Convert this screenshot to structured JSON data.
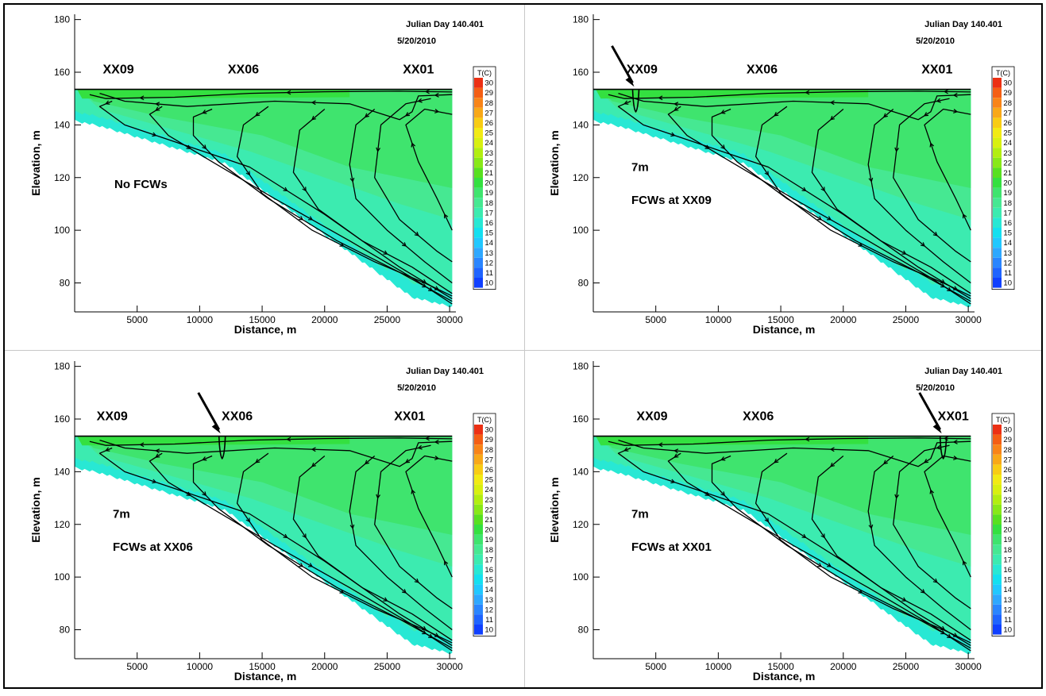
{
  "colorbar": {
    "title": "T(C)",
    "levels": [
      10,
      11,
      12,
      13,
      14,
      15,
      16,
      17,
      18,
      19,
      20,
      21,
      22,
      23,
      24,
      25,
      26,
      27,
      28,
      29,
      30
    ],
    "colors": [
      "#1040ff",
      "#1f64ff",
      "#2a85ff",
      "#2ea8ff",
      "#21c8ff",
      "#14e0f0",
      "#28e8d4",
      "#3cebb0",
      "#46e892",
      "#3fe46e",
      "#34e040",
      "#58e020",
      "#88e818",
      "#b2ee10",
      "#d8f010",
      "#f2ea14",
      "#f8cc14",
      "#f8a818",
      "#f88418",
      "#f45e14",
      "#ec3014"
    ]
  },
  "chart_data": [
    {
      "type": "contour",
      "title": "Julian Day 140.401",
      "subtitle": "5/20/2010",
      "xlabel": "Distance, m",
      "ylabel": "Elevation, m",
      "xlim": [
        0,
        30500
      ],
      "ylim": [
        69,
        182
      ],
      "xticks": [
        "5000",
        "10000",
        "15000",
        "20000",
        "25000",
        "30000"
      ],
      "yticks": [
        "80",
        "100",
        "120",
        "140",
        "160",
        "180"
      ],
      "station_labels": [
        {
          "text": "XX09",
          "x": 3500
        },
        {
          "text": "XX06",
          "x": 13500
        },
        {
          "text": "XX01",
          "x": 27500
        }
      ],
      "annotations": [
        "No FCWs"
      ],
      "fcw_x": null
    },
    {
      "type": "contour",
      "title": "Julian Day 140.401",
      "subtitle": "5/20/2010",
      "xlabel": "Distance, m",
      "ylabel": "Elevation, m",
      "xlim": [
        0,
        30500
      ],
      "ylim": [
        69,
        182
      ],
      "xticks": [
        "5000",
        "10000",
        "15000",
        "20000",
        "25000",
        "30000"
      ],
      "yticks": [
        "80",
        "100",
        "120",
        "140",
        "160",
        "180"
      ],
      "station_labels": [
        {
          "text": "XX09",
          "x": 3900
        },
        {
          "text": "XX06",
          "x": 13500
        },
        {
          "text": "XX01",
          "x": 27500
        }
      ],
      "annotations": [
        "7m",
        "FCWs at XX09"
      ],
      "fcw_x": 3400
    },
    {
      "type": "contour",
      "title": "Julian Day 140.401",
      "subtitle": "5/20/2010",
      "xlabel": "Distance, m",
      "ylabel": "Elevation, m",
      "xlim": [
        0,
        30500
      ],
      "ylim": [
        69,
        182
      ],
      "xticks": [
        "5000",
        "10000",
        "15000",
        "20000",
        "25000",
        "30000"
      ],
      "yticks": [
        "80",
        "100",
        "120",
        "140",
        "160",
        "180"
      ],
      "station_labels": [
        {
          "text": "XX09",
          "x": 3000
        },
        {
          "text": "XX06",
          "x": 13000
        },
        {
          "text": "XX01",
          "x": 26800
        }
      ],
      "annotations": [
        "7m",
        "FCWs at XX06"
      ],
      "fcw_x": 11800
    },
    {
      "type": "contour",
      "title": "Julian Day 140.401",
      "subtitle": "5/20/2010",
      "xlabel": "Distance, m",
      "ylabel": "Elevation, m",
      "xlim": [
        0,
        30500
      ],
      "ylim": [
        69,
        182
      ],
      "xticks": [
        "5000",
        "10000",
        "15000",
        "20000",
        "25000",
        "30000"
      ],
      "yticks": [
        "80",
        "100",
        "120",
        "140",
        "160",
        "180"
      ],
      "station_labels": [
        {
          "text": "XX09",
          "x": 4700
        },
        {
          "text": "XX06",
          "x": 13200
        },
        {
          "text": "XX01",
          "x": 28800
        }
      ],
      "annotations": [
        "7m",
        "FCWs at XX01"
      ],
      "fcw_x": 28000
    }
  ]
}
